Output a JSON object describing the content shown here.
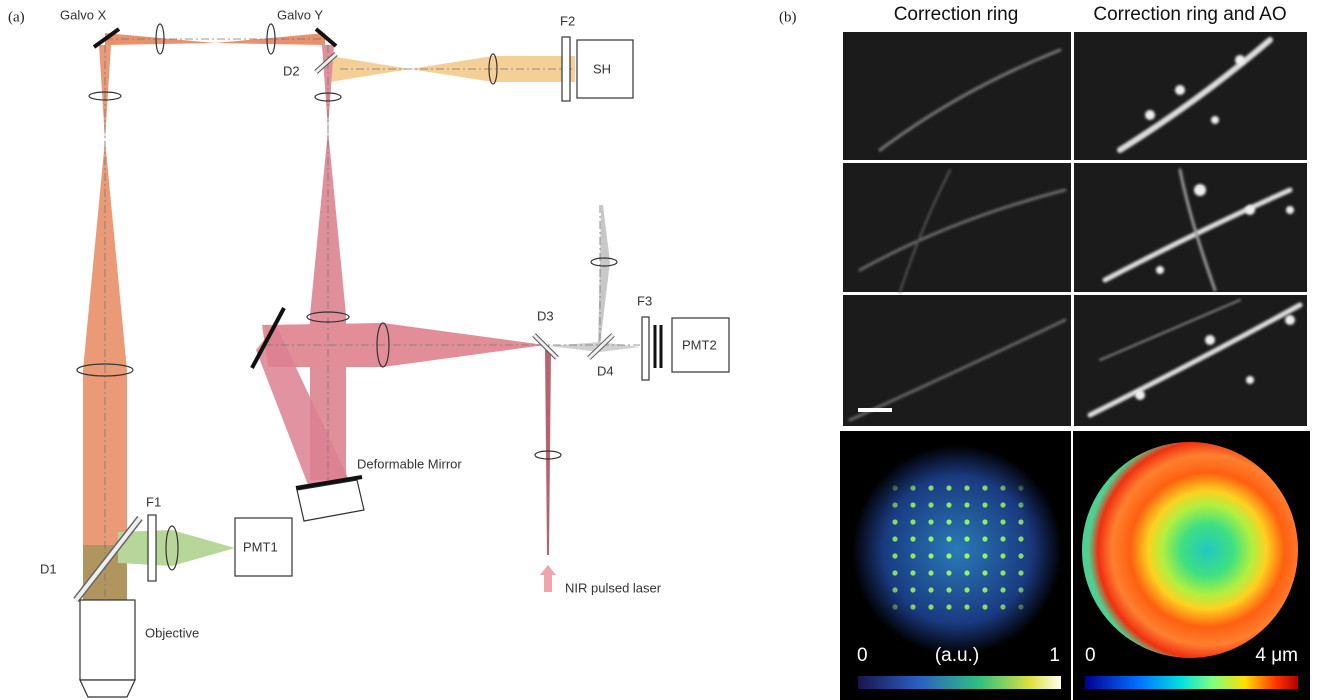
{
  "panel_a": {
    "label": "(a)",
    "components": {
      "galvo_x": "Galvo X",
      "galvo_y": "Galvo Y",
      "f2": "F2",
      "sh": "SH",
      "d2": "D2",
      "d3": "D3",
      "d4": "D4",
      "f3": "F3",
      "pmt2": "PMT2",
      "f1": "F1",
      "pmt1": "PMT1",
      "d1": "D1",
      "deformable_mirror": "Deformable Mirror",
      "laser": "NIR pulsed laser",
      "objective": "Objective"
    }
  },
  "panel_b": {
    "label": "(b)",
    "columns": [
      "Correction ring",
      "Correction ring and AO"
    ],
    "colorbars": [
      {
        "min": "0",
        "unit": "(a.u.)",
        "max": "1"
      },
      {
        "min": "0",
        "max": "4 μm"
      }
    ]
  }
}
